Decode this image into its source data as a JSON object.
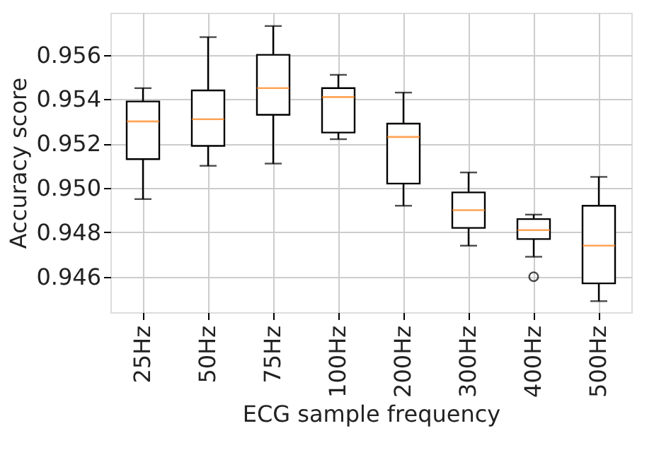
{
  "chart_data": {
    "type": "box",
    "xlabel": "ECG sample frequency",
    "ylabel": "Accuracy score",
    "categories": [
      "25Hz",
      "50Hz",
      "75Hz",
      "100Hz",
      "200Hz",
      "300Hz",
      "400Hz",
      "500Hz"
    ],
    "boxes": [
      {
        "low": 0.9495,
        "q1": 0.9513,
        "median": 0.953,
        "q3": 0.9539,
        "high": 0.9545
      },
      {
        "low": 0.951,
        "q1": 0.9519,
        "median": 0.9531,
        "q3": 0.9544,
        "high": 0.9568
      },
      {
        "low": 0.9511,
        "q1": 0.9533,
        "median": 0.9545,
        "q3": 0.956,
        "high": 0.9573
      },
      {
        "low": 0.9522,
        "q1": 0.9525,
        "median": 0.9541,
        "q3": 0.9545,
        "high": 0.9551
      },
      {
        "low": 0.9492,
        "q1": 0.9502,
        "median": 0.9523,
        "q3": 0.9529,
        "high": 0.9543
      },
      {
        "low": 0.9474,
        "q1": 0.9482,
        "median": 0.949,
        "q3": 0.9498,
        "high": 0.9507
      },
      {
        "low": 0.9469,
        "q1": 0.9477,
        "median": 0.9481,
        "q3": 0.9486,
        "high": 0.9488,
        "outliers": [
          0.946
        ]
      },
      {
        "low": 0.9449,
        "q1": 0.9457,
        "median": 0.9474,
        "q3": 0.9492,
        "high": 0.9505
      }
    ],
    "color": "#000000",
    "ylim": [
      0.9444,
      0.9579
    ],
    "yticks": [
      {
        "value": 0.946,
        "label": "0.946"
      },
      {
        "value": 0.948,
        "label": "0.948"
      },
      {
        "value": 0.95,
        "label": "0.950"
      },
      {
        "value": 0.952,
        "label": "0.952"
      },
      {
        "value": 0.954,
        "label": "0.954"
      },
      {
        "value": 0.956,
        "label": "0.956"
      }
    ],
    "grid": true
  }
}
